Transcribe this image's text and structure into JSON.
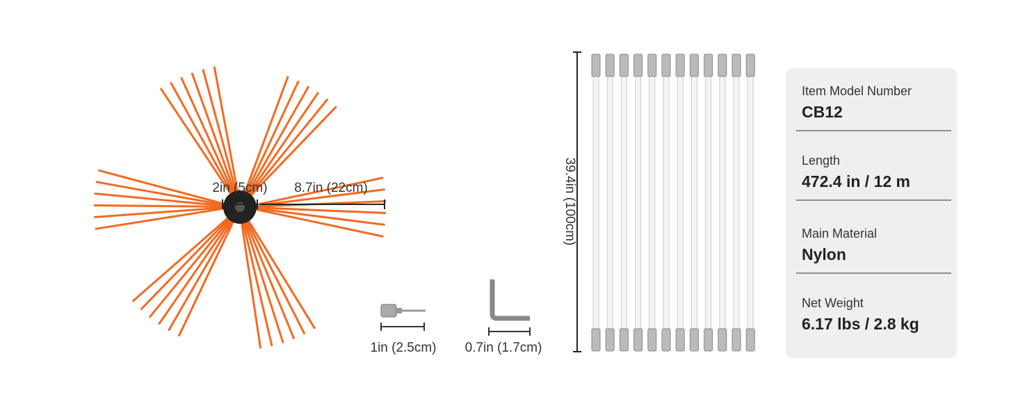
{
  "dimensions": {
    "brush_center": "2in (5cm)",
    "brush_bristle": "8.7in (22cm)",
    "adapter": "1in (2.5cm)",
    "wrench": "0.7in (1.7cm)",
    "rod_length": "39.4in (100cm)"
  },
  "specs": [
    {
      "label": "Item Model Number",
      "value": "CB12"
    },
    {
      "label": "Length",
      "value": "472.4 in / 12 m"
    },
    {
      "label": "Main Material",
      "value": "Nylon"
    },
    {
      "label": "Net Weight",
      "value": "6.17 lbs / 2.8 kg"
    }
  ]
}
